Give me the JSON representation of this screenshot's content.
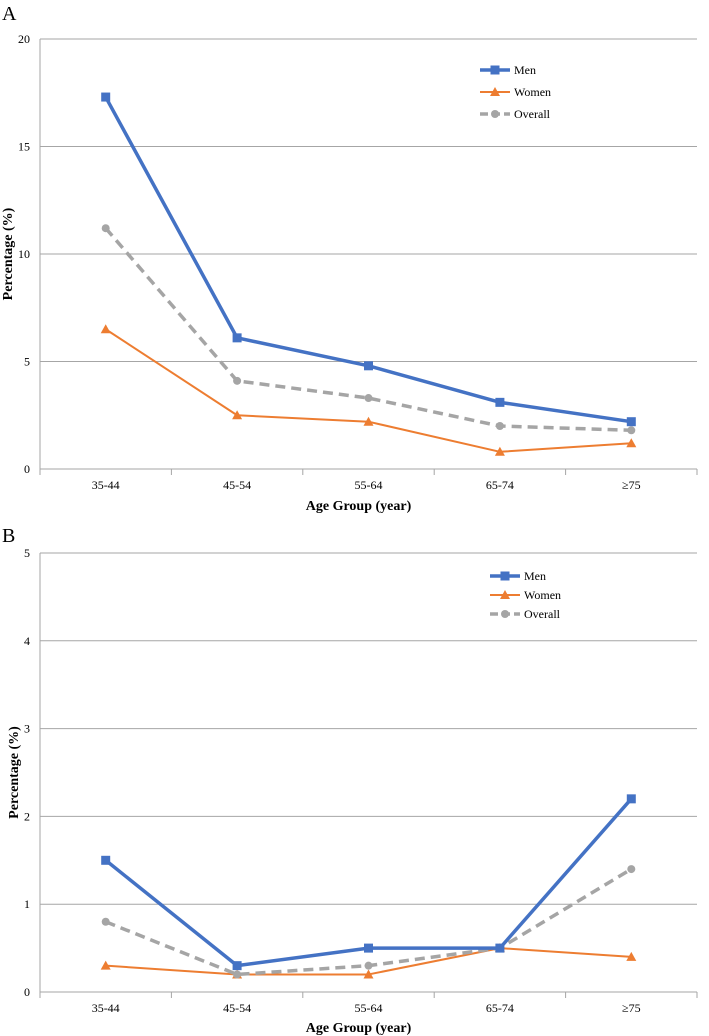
{
  "chart_data": [
    {
      "panel": "A",
      "type": "line",
      "categories": [
        "35-44",
        "45-54",
        "55-64",
        "65-74",
        "≥75"
      ],
      "series": [
        {
          "name": "Men",
          "values": [
            17.3,
            6.1,
            4.8,
            3.1,
            2.2
          ],
          "color": "#4472C4",
          "marker": "square",
          "dash": "solid"
        },
        {
          "name": "Women",
          "values": [
            6.5,
            2.5,
            2.2,
            0.8,
            1.2
          ],
          "color": "#ED7D31",
          "marker": "triangle",
          "dash": "solid"
        },
        {
          "name": "Overall",
          "values": [
            11.2,
            4.1,
            3.3,
            2.0,
            1.8
          ],
          "color": "#A5A5A5",
          "marker": "circle",
          "dash": "dashed"
        }
      ],
      "xlabel": "Age Group (year)",
      "ylabel": "Percentage (%)",
      "ylim": [
        0,
        20
      ],
      "yticks": [
        0,
        5,
        10,
        15,
        20
      ],
      "grid": true,
      "legend": "top-right"
    },
    {
      "panel": "B",
      "type": "line",
      "categories": [
        "35-44",
        "45-54",
        "55-64",
        "65-74",
        "≥75"
      ],
      "series": [
        {
          "name": "Men",
          "values": [
            1.5,
            0.3,
            0.5,
            0.5,
            2.2
          ],
          "color": "#4472C4",
          "marker": "square",
          "dash": "solid"
        },
        {
          "name": "Women",
          "values": [
            0.3,
            0.2,
            0.2,
            0.5,
            0.4
          ],
          "color": "#ED7D31",
          "marker": "triangle",
          "dash": "solid"
        },
        {
          "name": "Overall",
          "values": [
            0.8,
            0.2,
            0.3,
            0.5,
            1.4
          ],
          "color": "#A5A5A5",
          "marker": "circle",
          "dash": "dashed"
        }
      ],
      "xlabel": "Age Group (year)",
      "ylabel": "Percentage (%)",
      "ylim": [
        0,
        5
      ],
      "yticks": [
        0,
        1,
        2,
        3,
        4,
        5
      ],
      "grid": true,
      "legend": "top-right"
    }
  ]
}
